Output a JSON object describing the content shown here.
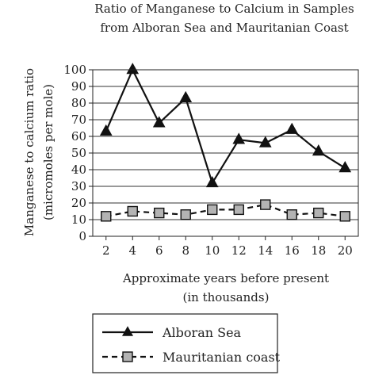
{
  "chart_data": {
    "type": "line",
    "title": [
      "Ratio of Manganese to Calcium in Samples",
      "from Alboran Sea and Mauritanian Coast"
    ],
    "xlabel": [
      "Approximate years before present",
      "(in thousands)"
    ],
    "ylabel": [
      "Manganese to calcium ratio",
      "(micromoles per mole)"
    ],
    "x": [
      2,
      4,
      6,
      8,
      10,
      12,
      14,
      16,
      18,
      20
    ],
    "ylim": [
      0,
      100
    ],
    "yticks": [
      0,
      10,
      20,
      30,
      40,
      50,
      60,
      70,
      80,
      90,
      100
    ],
    "grid": "horizontal",
    "legend_position": "bottom-left",
    "series": [
      {
        "name": "Alboran Sea",
        "marker": "triangle",
        "line": "solid",
        "color": "#111111",
        "values": [
          63,
          100,
          68,
          83,
          32,
          58,
          56,
          64,
          51,
          41
        ]
      },
      {
        "name": "Mauritanian coast",
        "marker": "square",
        "line": "dashed",
        "color": "#111111",
        "marker_fill": "#b3b3b3",
        "values": [
          12,
          15,
          14,
          13,
          16,
          16,
          19,
          13,
          14,
          12
        ]
      }
    ]
  }
}
